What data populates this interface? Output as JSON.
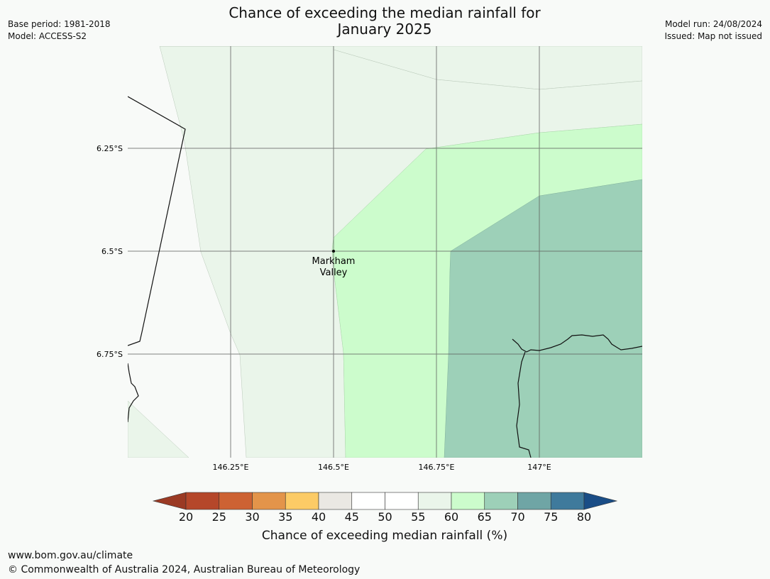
{
  "header": {
    "title_line1": "Chance of exceeding the median rainfall for",
    "title_line2": "January 2025",
    "base_period": "Base period: 1981-2018",
    "model": "Model: ACCESS-S2",
    "model_run": "Model run: 24/08/2024",
    "issued": "Issued: Map not issued"
  },
  "map": {
    "lat_labels": [
      "6.25°S",
      "6.5°S",
      "6.75°S"
    ],
    "lon_labels": [
      "146.25°E",
      "146.5°E",
      "146.75°E",
      "147°E"
    ],
    "place": {
      "name_line1": "Markham",
      "name_line2": "Valley"
    }
  },
  "colorbar": {
    "ticks": [
      "20",
      "25",
      "30",
      "35",
      "40",
      "45",
      "50",
      "55",
      "60",
      "65",
      "70",
      "75",
      "80"
    ],
    "colors": [
      "#9b3a24",
      "#b5472a",
      "#cd6233",
      "#e3944a",
      "#fccb66",
      "#eae8e3",
      "#ffffff",
      "#ffffff",
      "#eaf5ea",
      "#ccfccc",
      "#9dd0b8",
      "#6fa5a5",
      "#3f7a9c",
      "#1a4d86"
    ],
    "label": "Chance of exceeding median rainfall (%)"
  },
  "footer": {
    "url": "www.bom.gov.au/climate",
    "copyright": "© Commonwealth of Australia 2024, Australian Bureau of Meteorology"
  }
}
